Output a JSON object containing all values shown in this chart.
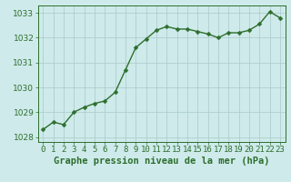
{
  "x": [
    0,
    1,
    2,
    3,
    4,
    5,
    6,
    7,
    8,
    9,
    10,
    11,
    12,
    13,
    14,
    15,
    16,
    17,
    18,
    19,
    20,
    21,
    22,
    23
  ],
  "y": [
    1028.3,
    1028.6,
    1028.5,
    1029.0,
    1029.2,
    1029.35,
    1029.45,
    1029.8,
    1030.7,
    1031.6,
    1031.95,
    1032.3,
    1032.45,
    1032.35,
    1032.35,
    1032.25,
    1032.15,
    1032.0,
    1032.2,
    1032.2,
    1032.3,
    1032.55,
    1033.05,
    1032.8
  ],
  "line_color": "#2d6e2d",
  "marker": "D",
  "marker_size": 2.5,
  "bg_color": "#ceeaea",
  "grid_color": "#aacaca",
  "title": "Graphe pression niveau de la mer (hPa)",
  "ylim": [
    1027.8,
    1033.3
  ],
  "yticks": [
    1028,
    1029,
    1030,
    1031,
    1032,
    1033
  ],
  "xlim": [
    -0.5,
    23.5
  ],
  "xticks": [
    0,
    1,
    2,
    3,
    4,
    5,
    6,
    7,
    8,
    9,
    10,
    11,
    12,
    13,
    14,
    15,
    16,
    17,
    18,
    19,
    20,
    21,
    22,
    23
  ],
  "title_fontsize": 7.5,
  "tick_fontsize": 6.5,
  "line_width": 1.0
}
